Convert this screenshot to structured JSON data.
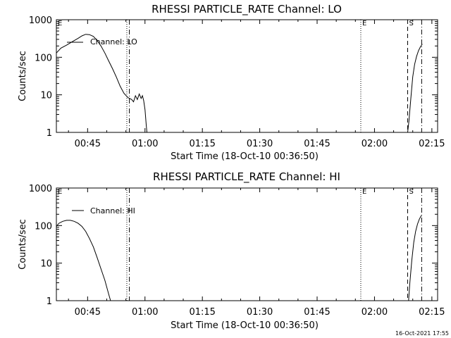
{
  "footer_timestamp": "16-Oct-2021 17:55",
  "chart_data": [
    {
      "type": "line",
      "title": "RHESSI PARTICLE_RATE Channel: LO",
      "xlabel": "Start Time (18-Oct-10 00:36:50)",
      "ylabel": "Counts/sec",
      "ylog": true,
      "ylim": [
        1,
        1000
      ],
      "xlim": [
        "00:36:50",
        "02:16:30"
      ],
      "x_ticks": [
        "00:45",
        "01:00",
        "01:15",
        "01:30",
        "01:45",
        "02:00",
        "02:15"
      ],
      "y_ticks": [
        "1",
        "10",
        "100",
        "1000"
      ],
      "legend": {
        "label": "Channel: LO",
        "placement": "top-left"
      },
      "markers": [
        {
          "label": "E",
          "time": "00:36:50",
          "style": "dotted"
        },
        {
          "label": "",
          "time": "00:55:15",
          "style": "dotted"
        },
        {
          "label": "",
          "time": "00:55:55",
          "style": "dash-dot"
        },
        {
          "label": "E",
          "time": "01:56:25",
          "style": "dotted"
        },
        {
          "label": "S",
          "time": "02:08:40",
          "style": "dashed"
        },
        {
          "label": "",
          "time": "02:12:20",
          "style": "dash-dot"
        }
      ],
      "series": [
        {
          "segments": [
            [
              [
                "00:36:50",
                130
              ],
              [
                "00:38:00",
                175
              ],
              [
                "00:39:30",
                210
              ],
              [
                "00:41:00",
                260
              ],
              [
                "00:42:30",
                320
              ],
              [
                "00:43:30",
                370
              ],
              [
                "00:44:30",
                410
              ],
              [
                "00:45:30",
                400
              ],
              [
                "00:46:30",
                360
              ],
              [
                "00:47:30",
                280
              ],
              [
                "00:48:30",
                200
              ],
              [
                "00:49:30",
                130
              ],
              [
                "00:50:30",
                80
              ],
              [
                "00:51:30",
                50
              ],
              [
                "00:52:30",
                30
              ],
              [
                "00:53:30",
                17
              ],
              [
                "00:54:30",
                11
              ],
              [
                "00:55:30",
                8.5
              ],
              [
                "00:56:30",
                7.5
              ],
              [
                "00:57:00",
                6.5
              ],
              [
                "00:57:30",
                9.5
              ],
              [
                "00:58:00",
                7.5
              ],
              [
                "00:58:30",
                10.5
              ],
              [
                "00:59:00",
                8
              ],
              [
                "00:59:20",
                9.5
              ],
              [
                "00:59:40",
                7
              ],
              [
                "01:00:00",
                4
              ],
              [
                "01:00:20",
                1.5
              ],
              [
                "01:00:30",
                1
              ]
            ],
            [
              [
                "02:08:40",
                1
              ],
              [
                "02:09:00",
                2
              ],
              [
                "02:09:30",
                8
              ],
              [
                "02:10:00",
                30
              ],
              [
                "02:10:30",
                65
              ],
              [
                "02:11:00",
                105
              ],
              [
                "02:11:30",
                150
              ],
              [
                "02:12:00",
                190
              ],
              [
                "02:12:30",
                225
              ]
            ]
          ]
        }
      ]
    },
    {
      "type": "line",
      "title": "RHESSI PARTICLE_RATE Channel: HI",
      "xlabel": "Start Time (18-Oct-10 00:36:50)",
      "ylabel": "Counts/sec",
      "ylog": true,
      "ylim": [
        1,
        1000
      ],
      "xlim": [
        "00:36:50",
        "02:16:30"
      ],
      "x_ticks": [
        "00:45",
        "01:00",
        "01:15",
        "01:30",
        "01:45",
        "02:00",
        "02:15"
      ],
      "y_ticks": [
        "1",
        "10",
        "100",
        "1000"
      ],
      "legend": {
        "label": "Channel: HI",
        "placement": "top-left"
      },
      "markers": [
        {
          "label": "E",
          "time": "00:36:50",
          "style": "dotted"
        },
        {
          "label": "",
          "time": "00:55:15",
          "style": "dotted"
        },
        {
          "label": "",
          "time": "00:55:55",
          "style": "dash-dot"
        },
        {
          "label": "E",
          "time": "01:56:25",
          "style": "dotted"
        },
        {
          "label": "S",
          "time": "02:08:40",
          "style": "dashed"
        },
        {
          "label": "",
          "time": "02:12:20",
          "style": "dash-dot"
        }
      ],
      "series": [
        {
          "segments": [
            [
              [
                "00:36:50",
                95
              ],
              [
                "00:37:30",
                115
              ],
              [
                "00:38:30",
                130
              ],
              [
                "00:39:30",
                138
              ],
              [
                "00:40:30",
                138
              ],
              [
                "00:41:30",
                130
              ],
              [
                "00:42:30",
                115
              ],
              [
                "00:43:30",
                95
              ],
              [
                "00:44:30",
                70
              ],
              [
                "00:45:30",
                45
              ],
              [
                "00:46:30",
                27
              ],
              [
                "00:47:30",
                14
              ],
              [
                "00:48:30",
                7
              ],
              [
                "00:49:30",
                3.5
              ],
              [
                "00:50:30",
                1.5
              ],
              [
                "00:51:00",
                1
              ]
            ],
            [
              [
                "02:08:55",
                1
              ],
              [
                "02:09:15",
                3
              ],
              [
                "02:09:45",
                12
              ],
              [
                "02:10:15",
                35
              ],
              [
                "02:10:45",
                70
              ],
              [
                "02:11:15",
                110
              ],
              [
                "02:11:45",
                150
              ],
              [
                "02:12:15",
                185
              ]
            ]
          ]
        }
      ]
    }
  ]
}
